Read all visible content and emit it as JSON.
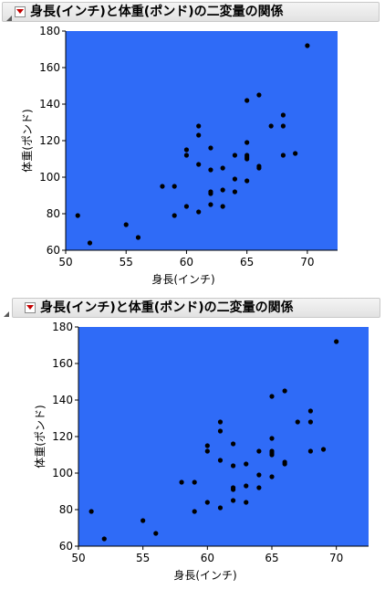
{
  "colors": {
    "plot_background": "#2f6bf7",
    "marker": "#000000",
    "menu_triangle": "#c40000"
  },
  "panels": [
    {
      "title": "身長(インチ)と体重(ポンド)の二変量の関係",
      "collapse_icon": "collapse-triangle-icon",
      "menu_icon": "red-triangle-menu-icon"
    },
    {
      "title": "身長(インチ)と体重(ポンド)の二変量の関係",
      "collapse_icon": "collapse-triangle-icon",
      "menu_icon": "red-triangle-menu-icon"
    }
  ],
  "chart_data": [
    {
      "type": "scatter",
      "xlabel": "身長(インチ)",
      "ylabel": "体重(ポンド)",
      "xlim": [
        50,
        72.5
      ],
      "ylim": [
        60,
        180
      ],
      "xticks": [
        50,
        55,
        60,
        65,
        70
      ],
      "yticks": [
        60,
        80,
        100,
        120,
        140,
        160,
        180
      ],
      "grid": false,
      "points": [
        [
          51,
          79
        ],
        [
          52,
          64
        ],
        [
          55,
          74
        ],
        [
          56,
          67
        ],
        [
          58,
          95
        ],
        [
          59,
          79
        ],
        [
          59,
          95
        ],
        [
          60,
          84
        ],
        [
          60,
          112
        ],
        [
          60,
          115
        ],
        [
          61,
          81
        ],
        [
          61,
          107
        ],
        [
          61,
          123
        ],
        [
          61,
          128
        ],
        [
          62,
          85
        ],
        [
          62,
          91
        ],
        [
          62,
          92
        ],
        [
          62,
          104
        ],
        [
          62,
          116
        ],
        [
          63,
          84
        ],
        [
          63,
          93
        ],
        [
          63,
          105
        ],
        [
          64,
          92
        ],
        [
          64,
          99
        ],
        [
          64,
          112
        ],
        [
          65,
          98
        ],
        [
          65,
          110
        ],
        [
          65,
          111
        ],
        [
          65,
          112
        ],
        [
          65,
          119
        ],
        [
          65,
          142
        ],
        [
          66,
          105
        ],
        [
          66,
          106
        ],
        [
          66,
          145
        ],
        [
          67,
          128
        ],
        [
          68,
          112
        ],
        [
          68,
          128
        ],
        [
          68,
          134
        ],
        [
          69,
          113
        ],
        [
          70,
          172
        ]
      ]
    },
    {
      "type": "scatter",
      "xlabel": "身長(インチ)",
      "ylabel": "体重(ポンド)",
      "xlim": [
        50,
        72.5
      ],
      "ylim": [
        60,
        180
      ],
      "xticks": [
        50,
        55,
        60,
        65,
        70
      ],
      "yticks": [
        60,
        80,
        100,
        120,
        140,
        160,
        180
      ],
      "grid": false,
      "points": [
        [
          51,
          79
        ],
        [
          52,
          64
        ],
        [
          55,
          74
        ],
        [
          56,
          67
        ],
        [
          58,
          95
        ],
        [
          59,
          79
        ],
        [
          59,
          95
        ],
        [
          60,
          84
        ],
        [
          60,
          112
        ],
        [
          60,
          115
        ],
        [
          61,
          81
        ],
        [
          61,
          107
        ],
        [
          61,
          123
        ],
        [
          61,
          128
        ],
        [
          62,
          85
        ],
        [
          62,
          91
        ],
        [
          62,
          92
        ],
        [
          62,
          104
        ],
        [
          62,
          116
        ],
        [
          63,
          84
        ],
        [
          63,
          93
        ],
        [
          63,
          105
        ],
        [
          64,
          92
        ],
        [
          64,
          99
        ],
        [
          64,
          112
        ],
        [
          65,
          98
        ],
        [
          65,
          110
        ],
        [
          65,
          111
        ],
        [
          65,
          112
        ],
        [
          65,
          119
        ],
        [
          65,
          142
        ],
        [
          66,
          105
        ],
        [
          66,
          106
        ],
        [
          66,
          145
        ],
        [
          67,
          128
        ],
        [
          68,
          112
        ],
        [
          68,
          128
        ],
        [
          68,
          134
        ],
        [
          69,
          113
        ],
        [
          70,
          172
        ]
      ]
    }
  ]
}
